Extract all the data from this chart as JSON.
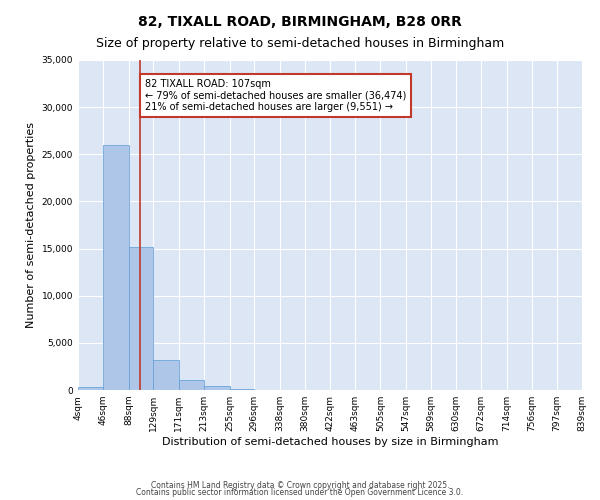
{
  "title": "82, TIXALL ROAD, BIRMINGHAM, B28 0RR",
  "subtitle": "Size of property relative to semi-detached houses in Birmingham",
  "xlabel": "Distribution of semi-detached houses by size in Birmingham",
  "ylabel": "Number of semi-detached properties",
  "bin_edges": [
    4,
    46,
    88,
    129,
    171,
    213,
    255,
    296,
    338,
    380,
    422,
    463,
    505,
    547,
    589,
    630,
    672,
    714,
    756,
    797,
    839
  ],
  "bar_heights": [
    300,
    26000,
    15200,
    3200,
    1100,
    400,
    150,
    0,
    0,
    0,
    0,
    0,
    0,
    0,
    0,
    0,
    0,
    0,
    0,
    0
  ],
  "bar_color": "#aec6e8",
  "bar_edge_color": "#5b9bd5",
  "property_sqm": 107,
  "red_line_color": "#c0392b",
  "annotation_text": "82 TIXALL ROAD: 107sqm\n← 79% of semi-detached houses are smaller (36,474)\n21% of semi-detached houses are larger (9,551) →",
  "annotation_box_color": "#ffffff",
  "annotation_box_edge_color": "#c0392b",
  "ylim": [
    0,
    35000
  ],
  "yticks": [
    0,
    5000,
    10000,
    15000,
    20000,
    25000,
    30000,
    35000
  ],
  "background_color": "#dce6f5",
  "grid_color": "#ffffff",
  "footer_line1": "Contains HM Land Registry data © Crown copyright and database right 2025.",
  "footer_line2": "Contains public sector information licensed under the Open Government Licence 3.0.",
  "title_fontsize": 10,
  "subtitle_fontsize": 9,
  "tick_label_fontsize": 6.5,
  "ylabel_fontsize": 8,
  "xlabel_fontsize": 8,
  "annotation_fontsize": 7,
  "footer_fontsize": 5.5
}
